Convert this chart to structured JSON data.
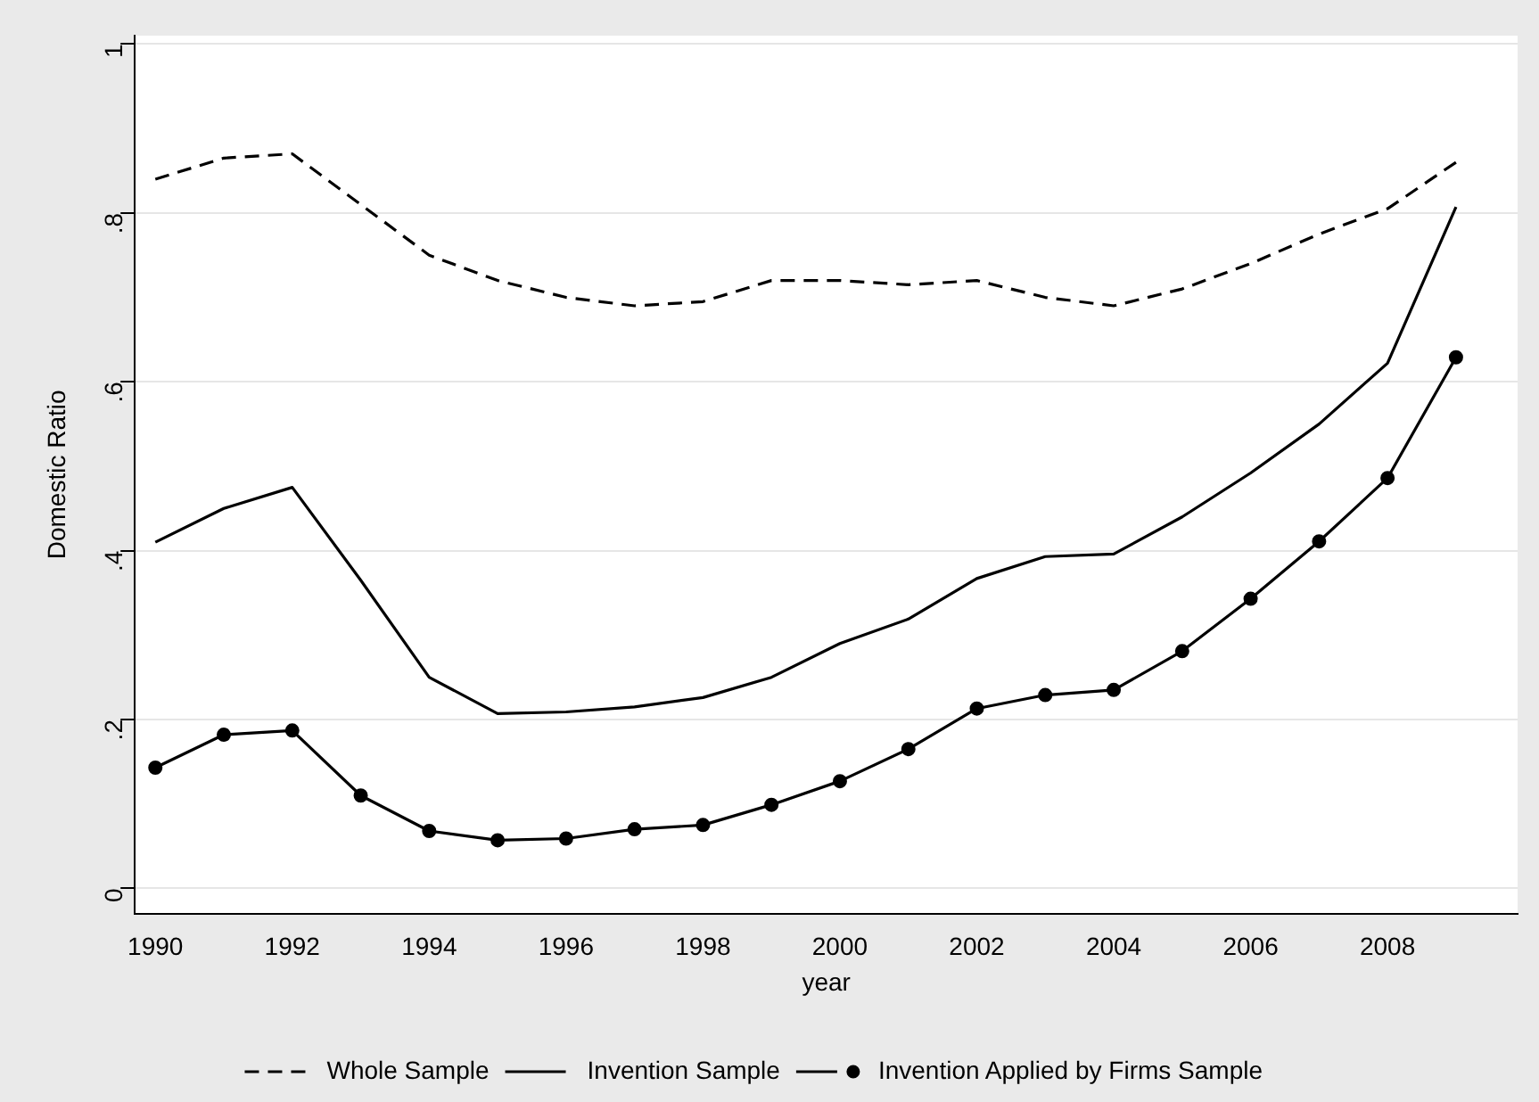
{
  "chart_data": {
    "type": "line",
    "xlabel": "year",
    "ylabel": "Domestic Ratio",
    "x": [
      1990,
      1991,
      1992,
      1993,
      1994,
      1995,
      1996,
      1997,
      1998,
      1999,
      2000,
      2001,
      2002,
      2003,
      2004,
      2005,
      2006,
      2007,
      2008,
      2009
    ],
    "series": [
      {
        "name": "Whole Sample",
        "color": "#000000",
        "line_style": "dashed",
        "marker": "none",
        "values": [
          0.84,
          0.865,
          0.87,
          0.81,
          0.75,
          0.72,
          0.7,
          0.69,
          0.695,
          0.72,
          0.72,
          0.715,
          0.72,
          0.7,
          0.69,
          0.71,
          0.74,
          0.775,
          0.805,
          0.86
        ]
      },
      {
        "name": "Invention Sample",
        "color": "#000000",
        "line_style": "solid",
        "marker": "none",
        "values": [
          0.41,
          0.45,
          0.475,
          0.365,
          0.25,
          0.207,
          0.209,
          0.215,
          0.226,
          0.25,
          0.29,
          0.319,
          0.367,
          0.393,
          0.396,
          0.44,
          0.492,
          0.55,
          0.622,
          0.807
        ]
      },
      {
        "name": "Invention Applied by Firms Sample",
        "color": "#000000",
        "line_style": "solid",
        "marker": "circle",
        "values": [
          0.143,
          0.182,
          0.187,
          0.11,
          0.068,
          0.057,
          0.059,
          0.07,
          0.075,
          0.099,
          0.127,
          0.165,
          0.213,
          0.229,
          0.235,
          0.281,
          0.343,
          0.411,
          0.486,
          0.629
        ]
      }
    ],
    "xlim": [
      1989.7,
      2009.9
    ],
    "xticks": [
      1990,
      1992,
      1994,
      1996,
      1998,
      2000,
      2002,
      2004,
      2006,
      2008
    ],
    "ylim": [
      -0.03,
      1.01
    ],
    "yticks": [
      0,
      {
        "value": 0.2,
        "label": ".2"
      },
      {
        "value": 0.4,
        "label": ".4"
      },
      {
        "value": 0.6,
        "label": ".6"
      },
      {
        "value": 0.8,
        "label": ".8"
      },
      {
        "value": 1,
        "label": "1"
      }
    ],
    "grid": "y",
    "legend": "bottom"
  }
}
